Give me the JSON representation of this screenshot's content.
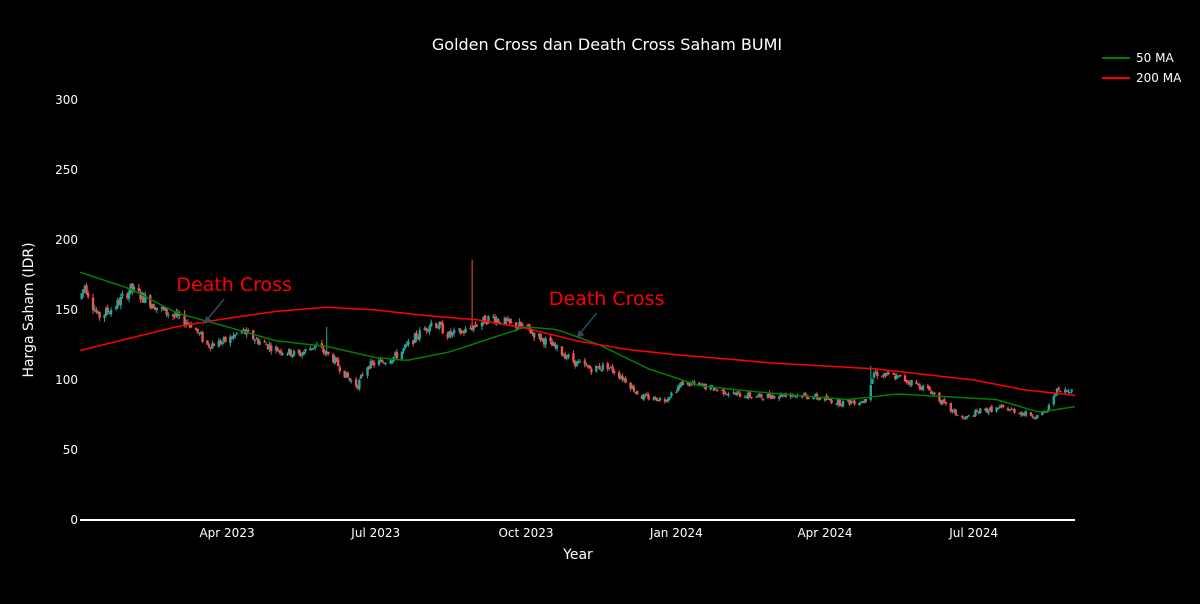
{
  "chart_data": {
    "type": "candlestick",
    "title": "Golden Cross dan Death Cross Saham BUMI",
    "xlabel": "Year",
    "ylabel": "Harga Saham (IDR)",
    "xlim": [
      "2023-01-01",
      "2024-09-01"
    ],
    "ylim": [
      0,
      320
    ],
    "x_ticks": [
      {
        "date": "2023-04-01",
        "label": "Apr 2023"
      },
      {
        "date": "2023-07-01",
        "label": "Jul 2023"
      },
      {
        "date": "2023-10-01",
        "label": "Oct 2023"
      },
      {
        "date": "2024-01-01",
        "label": "Jan 2024"
      },
      {
        "date": "2024-04-01",
        "label": "Apr 2024"
      },
      {
        "date": "2024-07-01",
        "label": "Jul 2024"
      }
    ],
    "y_ticks": [
      0,
      50,
      100,
      150,
      200,
      250,
      300
    ],
    "grid": false,
    "legend": {
      "placement": "top-right",
      "entries": [
        {
          "name": "50 MA",
          "color": "#008000"
        },
        {
          "name": "200 MA",
          "color": "#ff0000"
        }
      ]
    },
    "colors": {
      "up": "#26a69a",
      "down": "#ef5350"
    },
    "price_knots": [
      [
        "2023-01-01",
        158
      ],
      [
        "2023-01-04",
        168
      ],
      [
        "2023-01-12",
        145
      ],
      [
        "2023-01-22",
        152
      ],
      [
        "2023-02-01",
        165
      ],
      [
        "2023-02-10",
        158
      ],
      [
        "2023-02-20",
        150
      ],
      [
        "2023-03-01",
        145
      ],
      [
        "2023-03-10",
        140
      ],
      [
        "2023-03-20",
        125
      ],
      [
        "2023-04-01",
        128
      ],
      [
        "2023-04-10",
        135
      ],
      [
        "2023-04-20",
        128
      ],
      [
        "2023-05-01",
        122
      ],
      [
        "2023-05-15",
        118
      ],
      [
        "2023-05-25",
        125
      ],
      [
        "2023-06-05",
        115
      ],
      [
        "2023-06-15",
        100
      ],
      [
        "2023-06-20",
        96
      ],
      [
        "2023-06-25",
        110
      ],
      [
        "2023-07-05",
        113
      ],
      [
        "2023-07-15",
        118
      ],
      [
        "2023-07-25",
        130
      ],
      [
        "2023-08-05",
        142
      ],
      [
        "2023-08-15",
        132
      ],
      [
        "2023-08-25",
        135
      ],
      [
        "2023-09-01",
        140
      ],
      [
        "2023-09-10",
        145
      ],
      [
        "2023-09-20",
        140
      ],
      [
        "2023-09-30",
        138
      ],
      [
        "2023-10-10",
        130
      ],
      [
        "2023-10-20",
        122
      ],
      [
        "2023-11-01",
        112
      ],
      [
        "2023-11-10",
        108
      ],
      [
        "2023-11-20",
        110
      ],
      [
        "2023-12-01",
        100
      ],
      [
        "2023-12-10",
        88
      ],
      [
        "2023-12-25",
        86
      ],
      [
        "2024-01-05",
        98
      ],
      [
        "2024-01-20",
        95
      ],
      [
        "2024-02-05",
        90
      ],
      [
        "2024-02-20",
        88
      ],
      [
        "2024-03-10",
        90
      ],
      [
        "2024-03-25",
        88
      ],
      [
        "2024-04-10",
        84
      ],
      [
        "2024-04-25",
        85
      ],
      [
        "2024-05-01",
        105
      ],
      [
        "2024-05-15",
        102
      ],
      [
        "2024-05-25",
        98
      ],
      [
        "2024-06-05",
        92
      ],
      [
        "2024-06-15",
        80
      ],
      [
        "2024-06-25",
        72
      ],
      [
        "2024-07-05",
        78
      ],
      [
        "2024-07-20",
        80
      ],
      [
        "2024-08-01",
        76
      ],
      [
        "2024-08-10",
        74
      ],
      [
        "2024-08-15",
        78
      ],
      [
        "2024-08-20",
        92
      ],
      [
        "2024-08-28",
        92
      ],
      [
        "2024-09-01",
        98
      ]
    ],
    "spikes": [
      {
        "date": "2023-06-01",
        "high": 138
      },
      {
        "date": "2023-08-29",
        "high": 186
      },
      {
        "date": "2024-04-29",
        "high": 110
      }
    ],
    "ma50_knots": [
      [
        "2023-01-01",
        177
      ],
      [
        "2023-02-01",
        165
      ],
      [
        "2023-03-01",
        148
      ],
      [
        "2023-04-01",
        138
      ],
      [
        "2023-05-01",
        128
      ],
      [
        "2023-06-01",
        124
      ],
      [
        "2023-07-01",
        116
      ],
      [
        "2023-07-20",
        114
      ],
      [
        "2023-08-15",
        120
      ],
      [
        "2023-09-10",
        130
      ],
      [
        "2023-10-01",
        138
      ],
      [
        "2023-10-20",
        136
      ],
      [
        "2023-11-15",
        125
      ],
      [
        "2023-12-15",
        108
      ],
      [
        "2024-01-15",
        96
      ],
      [
        "2024-02-15",
        92
      ],
      [
        "2024-03-15",
        89
      ],
      [
        "2024-04-15",
        86
      ],
      [
        "2024-05-15",
        90
      ],
      [
        "2024-06-15",
        88
      ],
      [
        "2024-07-15",
        86
      ],
      [
        "2024-08-10",
        77
      ],
      [
        "2024-09-01",
        81
      ]
    ],
    "ma200_knots": [
      [
        "2023-01-01",
        121
      ],
      [
        "2023-02-01",
        130
      ],
      [
        "2023-03-01",
        138
      ],
      [
        "2023-04-01",
        144
      ],
      [
        "2023-05-01",
        149
      ],
      [
        "2023-06-01",
        152
      ],
      [
        "2023-07-01",
        150
      ],
      [
        "2023-08-01",
        146
      ],
      [
        "2023-09-01",
        143
      ],
      [
        "2023-10-01",
        137
      ],
      [
        "2023-11-01",
        128
      ],
      [
        "2023-12-01",
        122
      ],
      [
        "2024-01-01",
        118
      ],
      [
        "2024-02-01",
        115
      ],
      [
        "2024-03-01",
        112
      ],
      [
        "2024-04-01",
        110
      ],
      [
        "2024-05-01",
        108
      ],
      [
        "2024-06-01",
        104
      ],
      [
        "2024-07-01",
        100
      ],
      [
        "2024-08-01",
        93
      ],
      [
        "2024-09-01",
        89
      ]
    ],
    "annotations": [
      {
        "text": "Death Cross",
        "date": "2023-03-18",
        "value": 140,
        "color": "#ff0000"
      },
      {
        "text": "Death Cross",
        "date": "2023-11-01",
        "value": 130,
        "color": "#ff0000"
      }
    ]
  }
}
